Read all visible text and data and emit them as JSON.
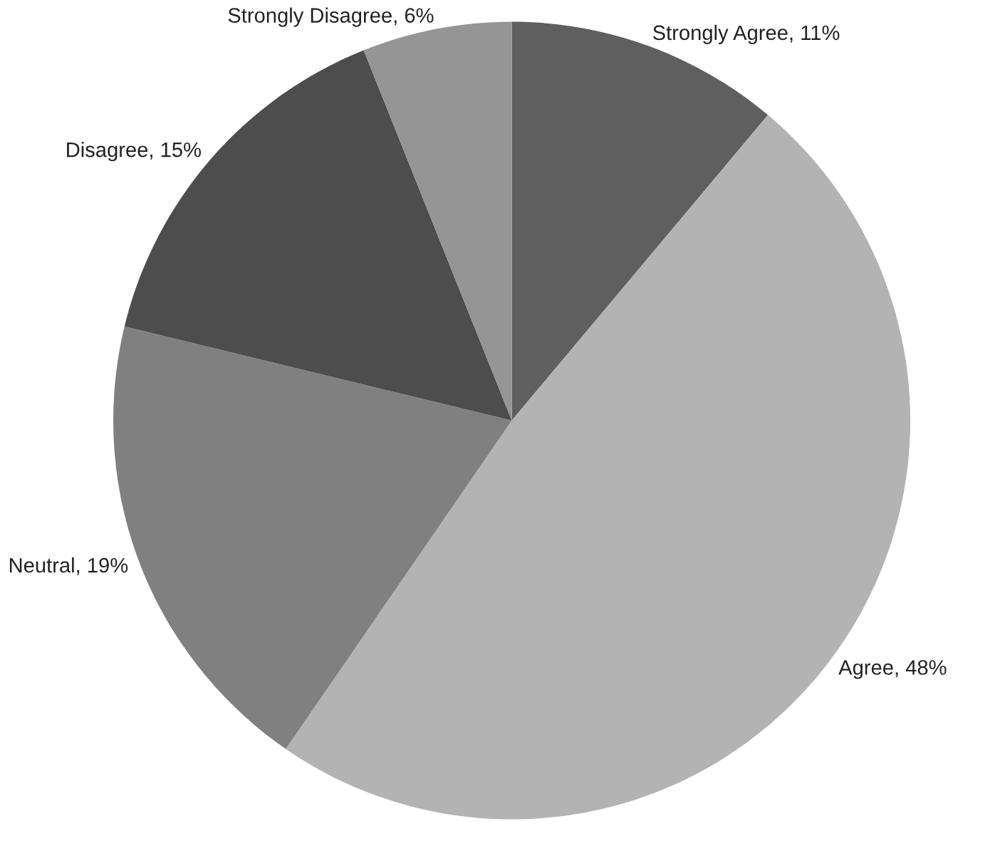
{
  "chart_data": {
    "type": "pie",
    "categories": [
      "Strongly Agree, 11%",
      "Agree, 48%",
      "Neutral, 19%",
      "Disagree, 15%",
      "Strongly Disagree, 6%"
    ],
    "values": [
      11,
      48,
      19,
      15,
      6
    ],
    "colors": [
      "#5f5f5f",
      "#b3b3b3",
      "#7f807f",
      "#4d4d4d",
      "#959595"
    ]
  }
}
